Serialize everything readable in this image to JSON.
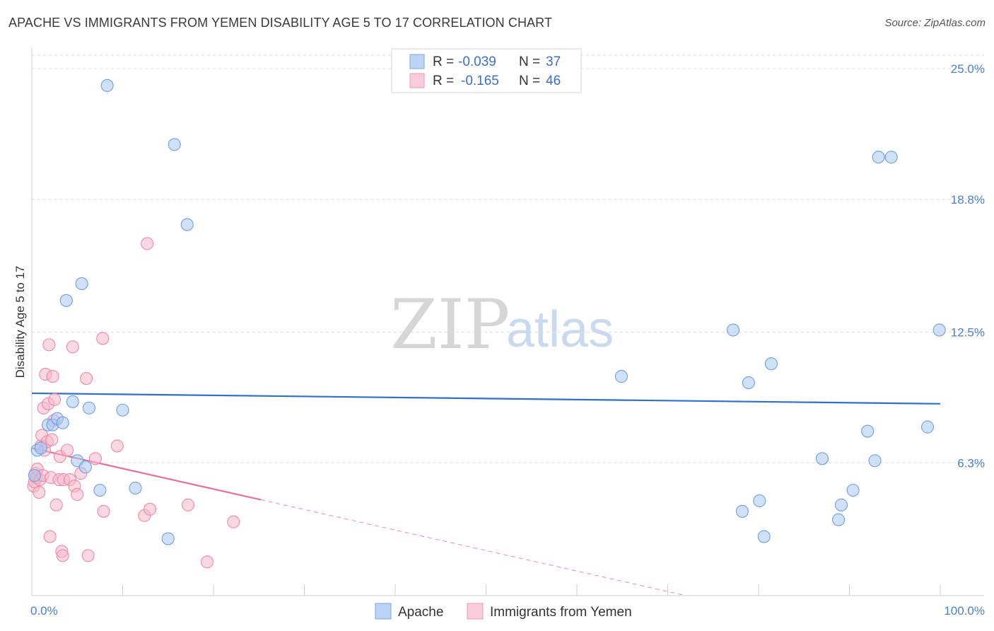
{
  "title": "APACHE VS IMMIGRANTS FROM YEMEN DISABILITY AGE 5 TO 17 CORRELATION CHART",
  "source": "Source: ZipAtlas.com",
  "watermark": {
    "zip": "ZIP",
    "atlas": "atlas"
  },
  "colors": {
    "apache_fill": "#a9c8f0",
    "apache_stroke": "#6f9fe0",
    "apache_line": "#2f6fce",
    "yemen_fill": "#f6b8cb",
    "yemen_stroke": "#ec8aa8",
    "yemen_line": "#e76f98",
    "grid": "#dcdcdc",
    "axis_label": "#4a7fd1"
  },
  "legend": {
    "rows": [
      {
        "r_label": "R =",
        "r_value": "-0.039",
        "n_label": "N =",
        "n_value": "37"
      },
      {
        "r_label": "R =",
        "r_value": "-0.165",
        "n_label": "N =",
        "n_value": "46"
      }
    ]
  },
  "chart_data": {
    "type": "scatter",
    "title": "APACHE VS IMMIGRANTS FROM YEMEN DISABILITY AGE 5 TO 17 CORRELATION CHART",
    "xlabel": "",
    "ylabel": "Disability Age 5 to 17",
    "xlim": [
      0,
      100
    ],
    "ylim": [
      0,
      25
    ],
    "x_tick_labels": [
      "0.0%",
      "100.0%"
    ],
    "y_ticks": [
      6.3,
      12.5,
      18.8,
      25.0
    ],
    "y_tick_labels": [
      "6.3%",
      "12.5%",
      "18.8%",
      "25.0%"
    ],
    "series": [
      {
        "name": "Apache",
        "r": -0.039,
        "n": 37,
        "trend": {
          "x": [
            0,
            100
          ],
          "y": [
            9.6,
            9.1
          ],
          "solid_until": 100
        },
        "points": [
          {
            "x": 0.3,
            "y": 5.7
          },
          {
            "x": 0.6,
            "y": 6.9
          },
          {
            "x": 1.0,
            "y": 7.0
          },
          {
            "x": 1.8,
            "y": 8.1
          },
          {
            "x": 2.3,
            "y": 8.1
          },
          {
            "x": 2.8,
            "y": 8.4
          },
          {
            "x": 3.4,
            "y": 8.2
          },
          {
            "x": 3.8,
            "y": 14.0
          },
          {
            "x": 4.5,
            "y": 9.2
          },
          {
            "x": 5.0,
            "y": 6.4
          },
          {
            "x": 5.5,
            "y": 14.8
          },
          {
            "x": 5.9,
            "y": 6.1
          },
          {
            "x": 6.3,
            "y": 8.9
          },
          {
            "x": 7.5,
            "y": 5.0
          },
          {
            "x": 8.3,
            "y": 24.2
          },
          {
            "x": 10.0,
            "y": 8.8
          },
          {
            "x": 11.4,
            "y": 5.1
          },
          {
            "x": 15.0,
            "y": 2.7
          },
          {
            "x": 15.7,
            "y": 21.4
          },
          {
            "x": 17.1,
            "y": 17.6
          },
          {
            "x": 64.9,
            "y": 10.4
          },
          {
            "x": 77.2,
            "y": 12.6
          },
          {
            "x": 78.2,
            "y": 4.0
          },
          {
            "x": 78.9,
            "y": 10.1
          },
          {
            "x": 80.1,
            "y": 4.5
          },
          {
            "x": 80.6,
            "y": 2.8
          },
          {
            "x": 81.4,
            "y": 11.0
          },
          {
            "x": 87.0,
            "y": 6.5
          },
          {
            "x": 88.8,
            "y": 3.6
          },
          {
            "x": 89.1,
            "y": 4.3
          },
          {
            "x": 90.4,
            "y": 5.0
          },
          {
            "x": 92.0,
            "y": 7.8
          },
          {
            "x": 92.8,
            "y": 6.4
          },
          {
            "x": 93.2,
            "y": 20.8
          },
          {
            "x": 94.6,
            "y": 20.8
          },
          {
            "x": 98.6,
            "y": 8.0
          },
          {
            "x": 99.9,
            "y": 12.6
          }
        ]
      },
      {
        "name": "Immigrants from Yemen",
        "r": -0.165,
        "n": 46,
        "trend": {
          "x": [
            0,
            72
          ],
          "y": [
            7.0,
            0.0
          ],
          "solid_until": 25.2
        },
        "points": [
          {
            "x": 0.2,
            "y": 5.2
          },
          {
            "x": 0.3,
            "y": 5.4
          },
          {
            "x": 0.4,
            "y": 5.8
          },
          {
            "x": 0.5,
            "y": 5.6
          },
          {
            "x": 0.6,
            "y": 6.0
          },
          {
            "x": 0.8,
            "y": 4.9
          },
          {
            "x": 0.9,
            "y": 5.5
          },
          {
            "x": 1.0,
            "y": 7.1
          },
          {
            "x": 1.1,
            "y": 7.6
          },
          {
            "x": 1.2,
            "y": 5.7
          },
          {
            "x": 1.3,
            "y": 8.9
          },
          {
            "x": 1.4,
            "y": 6.9
          },
          {
            "x": 1.5,
            "y": 10.5
          },
          {
            "x": 1.7,
            "y": 7.3
          },
          {
            "x": 1.8,
            "y": 9.1
          },
          {
            "x": 1.9,
            "y": 11.9
          },
          {
            "x": 2.0,
            "y": 2.8
          },
          {
            "x": 2.1,
            "y": 5.6
          },
          {
            "x": 2.2,
            "y": 7.4
          },
          {
            "x": 2.3,
            "y": 10.4
          },
          {
            "x": 2.4,
            "y": 8.3
          },
          {
            "x": 2.5,
            "y": 9.3
          },
          {
            "x": 2.7,
            "y": 4.3
          },
          {
            "x": 3.0,
            "y": 5.5
          },
          {
            "x": 3.1,
            "y": 6.6
          },
          {
            "x": 3.3,
            "y": 2.1
          },
          {
            "x": 3.4,
            "y": 1.9
          },
          {
            "x": 3.5,
            "y": 5.5
          },
          {
            "x": 3.9,
            "y": 6.9
          },
          {
            "x": 4.2,
            "y": 5.5
          },
          {
            "x": 4.5,
            "y": 11.8
          },
          {
            "x": 4.7,
            "y": 5.2
          },
          {
            "x": 5.0,
            "y": 4.8
          },
          {
            "x": 5.4,
            "y": 5.8
          },
          {
            "x": 6.0,
            "y": 10.3
          },
          {
            "x": 6.2,
            "y": 1.9
          },
          {
            "x": 7.0,
            "y": 6.5
          },
          {
            "x": 7.8,
            "y": 12.2
          },
          {
            "x": 7.9,
            "y": 4.0
          },
          {
            "x": 9.4,
            "y": 7.1
          },
          {
            "x": 12.4,
            "y": 3.8
          },
          {
            "x": 12.7,
            "y": 16.7
          },
          {
            "x": 13.0,
            "y": 4.1
          },
          {
            "x": 17.2,
            "y": 4.3
          },
          {
            "x": 19.3,
            "y": 1.6
          },
          {
            "x": 22.2,
            "y": 3.5
          }
        ]
      }
    ],
    "legend_labels": [
      "Apache",
      "Immigrants from Yemen"
    ]
  }
}
